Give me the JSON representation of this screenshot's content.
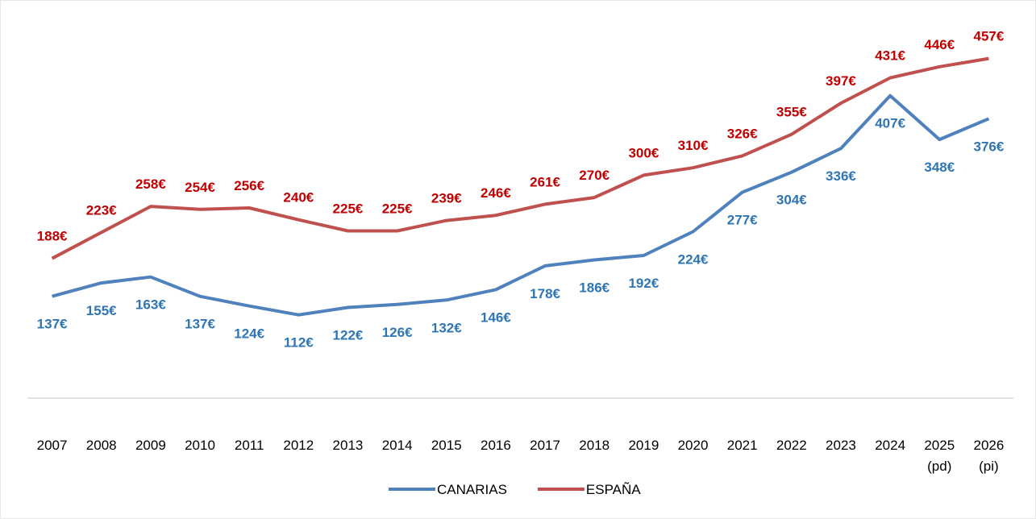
{
  "chart_data": {
    "type": "line",
    "categories": [
      "2007",
      "2008",
      "2009",
      "2010",
      "2011",
      "2012",
      "2013",
      "2014",
      "2015",
      "2016",
      "2017",
      "2018",
      "2019",
      "2020",
      "2021",
      "2022",
      "2023",
      "2024",
      "2025\n(pd)",
      "2026\n(pi)"
    ],
    "ylim": [
      0,
      500
    ],
    "legend": "bottom",
    "series": [
      {
        "name": "CANARIAS",
        "color": "#4f81bd",
        "label_color": "#2e75b6",
        "values": [
          137,
          155,
          163,
          137,
          124,
          112,
          122,
          126,
          132,
          146,
          178,
          186,
          192,
          224,
          277,
          304,
          336,
          407,
          348,
          376
        ],
        "value_labels": [
          "137€",
          "155€",
          "163€",
          "137€",
          "124€",
          "112€",
          "122€",
          "126€",
          "132€",
          "146€",
          "178€",
          "186€",
          "192€",
          "224€",
          "277€",
          "304€",
          "336€",
          "407€",
          "348€",
          "376€"
        ]
      },
      {
        "name": "ESPAÑA",
        "color": "#c0504d",
        "label_color": "#c00000",
        "values": [
          188,
          223,
          258,
          254,
          256,
          240,
          225,
          225,
          239,
          246,
          261,
          270,
          300,
          310,
          326,
          355,
          397,
          431,
          446,
          457
        ],
        "value_labels": [
          "188€",
          "223€",
          "258€",
          "254€",
          "256€",
          "240€",
          "225€",
          "225€",
          "239€",
          "246€",
          "261€",
          "270€",
          "300€",
          "310€",
          "326€",
          "355€",
          "397€",
          "431€",
          "446€",
          "457€"
        ]
      }
    ]
  }
}
